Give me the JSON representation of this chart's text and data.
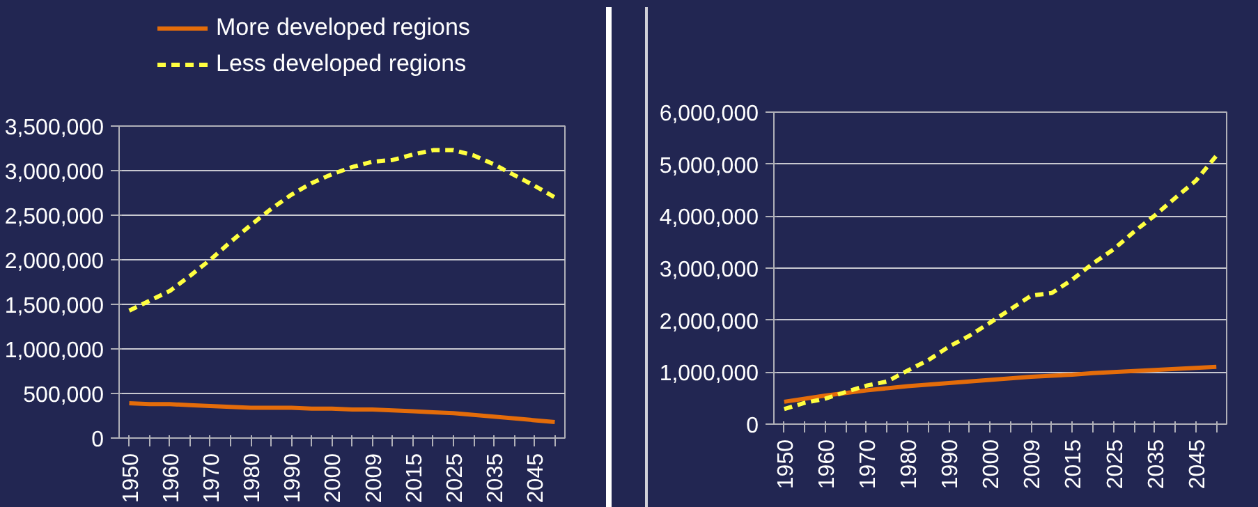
{
  "chart_data": [
    {
      "type": "line",
      "categories": [
        "1950",
        null,
        "1960",
        null,
        "1970",
        null,
        "1980",
        null,
        "1990",
        null,
        "2000",
        null,
        "2009",
        null,
        "2015",
        null,
        "2025",
        null,
        "2035",
        null,
        "2045",
        null
      ],
      "series": [
        {
          "name": "More developed regions",
          "color": "#e46c0a",
          "line_style": "solid",
          "values": [
            390000,
            380000,
            380000,
            370000,
            360000,
            350000,
            340000,
            340000,
            340000,
            330000,
            330000,
            320000,
            320000,
            310000,
            300000,
            290000,
            280000,
            260000,
            240000,
            220000,
            200000,
            180000
          ]
        },
        {
          "name": "Less developed regions",
          "color": "#ffff40",
          "line_style": "dashed",
          "values": [
            1430000,
            1540000,
            1650000,
            1820000,
            2000000,
            2200000,
            2390000,
            2570000,
            2730000,
            2860000,
            2960000,
            3040000,
            3100000,
            3120000,
            3180000,
            3230000,
            3230000,
            3170000,
            3070000,
            2950000,
            2830000,
            2700000
          ]
        }
      ],
      "ylim": [
        0,
        3500000
      ],
      "yticks": [
        0,
        {
          "value": 500000,
          "label": "500,000"
        },
        {
          "value": 1000000,
          "label": "1,000,000"
        },
        {
          "value": 1500000,
          "label": "1,500,000"
        },
        {
          "value": 2000000,
          "label": "2,000,000"
        },
        {
          "value": 2500000,
          "label": "2,500,000"
        },
        {
          "value": 3000000,
          "label": "3,000,000"
        },
        {
          "value": 3500000,
          "label": "3,500,000"
        }
      ],
      "grid": "y",
      "legend": "top",
      "marker": "none"
    },
    {
      "type": "line",
      "categories": [
        "1950",
        null,
        "1960",
        null,
        "1970",
        null,
        "1980",
        null,
        "1990",
        null,
        "2000",
        null,
        "2009",
        null,
        "2015",
        null,
        "2025",
        null,
        "2035",
        null,
        "2045",
        null
      ],
      "series": [
        {
          "color": "#e46c0a",
          "line_style": "solid",
          "values": [
            430000,
            490000,
            550000,
            600000,
            650000,
            690000,
            730000,
            760000,
            790000,
            820000,
            850000,
            880000,
            910000,
            930000,
            950000,
            980000,
            1000000,
            1020000,
            1040000,
            1060000,
            1080000,
            1100000
          ]
        },
        {
          "color": "#ffff40",
          "line_style": "dashed",
          "values": [
            290000,
            410000,
            490000,
            620000,
            740000,
            820000,
            1030000,
            1230000,
            1490000,
            1700000,
            1950000,
            2210000,
            2470000,
            2520000,
            2780000,
            3090000,
            3360000,
            3700000,
            4010000,
            4350000,
            4680000,
            5160000
          ]
        }
      ],
      "ylim": [
        0,
        6000000
      ],
      "yticks": [
        0,
        {
          "value": 1000000,
          "label": "1,000,000"
        },
        {
          "value": 2000000,
          "label": "2,000,000"
        },
        {
          "value": 3000000,
          "label": "3,000,000"
        },
        {
          "value": 4000000,
          "label": "4,000,000"
        },
        {
          "value": 5000000,
          "label": "5,000,000"
        },
        {
          "value": 6000000,
          "label": "6,000,000"
        }
      ],
      "grid": "y",
      "marker": "none"
    }
  ]
}
